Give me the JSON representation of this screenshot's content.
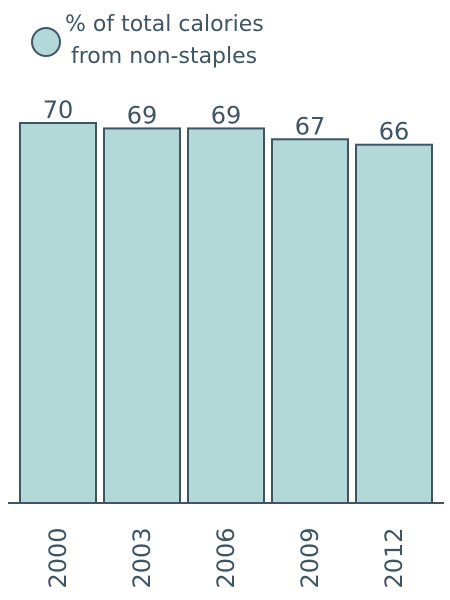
{
  "colors": {
    "bar_fill": "#b2d8d8",
    "bar_stroke": "#3f5564",
    "text": "#3f5564",
    "axis": "#3f5564",
    "background": "#ffffff"
  },
  "legend": {
    "marker": "circle",
    "label_line1": "% of total calories",
    "label_line2": "from non-staples"
  },
  "chart_data": {
    "type": "bar",
    "categories": [
      "2000",
      "2003",
      "2006",
      "2009",
      "2012"
    ],
    "values": [
      70,
      69,
      69,
      67,
      66
    ],
    "series": [
      {
        "name": "% of total calories from non-staples",
        "values": [
          70,
          69,
          69,
          67,
          66
        ]
      }
    ],
    "data_labels": [
      "70",
      "69",
      "69",
      "67",
      "66"
    ],
    "ylim": [
      0,
      70
    ],
    "y_axis_visible": false,
    "grid": false,
    "legend_position": "top-left",
    "xtick_rotation": "vertical"
  }
}
